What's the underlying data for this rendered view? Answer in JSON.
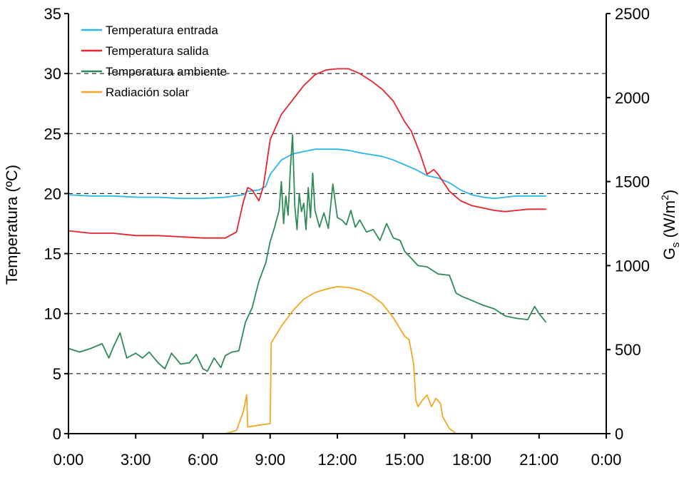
{
  "chart_data": {
    "type": "line",
    "ylabel": "Temperatura (ºC)",
    "y2label": {
      "main": "G",
      "sub": "s",
      "unit_open": " (W/m",
      "unit_sup": "2",
      "unit_close": ")"
    },
    "x_ticks": [
      "0:00",
      "3:00",
      "6:00",
      "9:00",
      "12:00",
      "15:00",
      "18:00",
      "21:00",
      "0:00"
    ],
    "x_range_hours": [
      0,
      24
    ],
    "y_ticks": [
      0,
      5,
      10,
      15,
      20,
      25,
      30,
      35
    ],
    "y_range": [
      0,
      35
    ],
    "y2_ticks": [
      0,
      500,
      1000,
      1500,
      2000,
      2500
    ],
    "y2_range": [
      0,
      2500
    ],
    "grid": "dashed horizontal at y = 5, 10, 15, 20, 25, 30",
    "legend_position": "top-left",
    "series": [
      {
        "name": "Temperatura entrada",
        "color": "#29b6e8",
        "axis": "left",
        "points": [
          [
            0,
            19.9
          ],
          [
            1,
            19.8
          ],
          [
            2,
            19.8
          ],
          [
            3,
            19.7
          ],
          [
            4,
            19.7
          ],
          [
            5,
            19.6
          ],
          [
            6,
            19.6
          ],
          [
            7,
            19.7
          ],
          [
            7.8,
            19.9
          ],
          [
            8,
            20.2
          ],
          [
            8.5,
            20.3
          ],
          [
            8.8,
            20.6
          ],
          [
            9,
            21.6
          ],
          [
            9.5,
            22.8
          ],
          [
            10,
            23.3
          ],
          [
            10.5,
            23.5
          ],
          [
            11,
            23.7
          ],
          [
            11.5,
            23.7
          ],
          [
            12,
            23.7
          ],
          [
            12.5,
            23.6
          ],
          [
            13,
            23.4
          ],
          [
            14,
            23.1
          ],
          [
            14.5,
            22.8
          ],
          [
            15,
            22.4
          ],
          [
            15.5,
            22.0
          ],
          [
            16,
            21.5
          ],
          [
            16.5,
            21.3
          ],
          [
            17,
            20.9
          ],
          [
            17.5,
            20.3
          ],
          [
            18,
            19.9
          ],
          [
            18.5,
            19.7
          ],
          [
            19,
            19.6
          ],
          [
            19.5,
            19.7
          ],
          [
            20,
            19.8
          ],
          [
            20.5,
            19.8
          ],
          [
            21.3,
            19.8
          ]
        ]
      },
      {
        "name": "Temperatura salida",
        "color": "#e8232b",
        "axis": "left",
        "points": [
          [
            0,
            16.9
          ],
          [
            1,
            16.7
          ],
          [
            2,
            16.7
          ],
          [
            3,
            16.5
          ],
          [
            4,
            16.5
          ],
          [
            5,
            16.4
          ],
          [
            6,
            16.3
          ],
          [
            7,
            16.3
          ],
          [
            7.5,
            16.8
          ],
          [
            7.8,
            19.3
          ],
          [
            8,
            20.5
          ],
          [
            8.2,
            20.3
          ],
          [
            8.5,
            19.4
          ],
          [
            8.7,
            20.6
          ],
          [
            9,
            24.5
          ],
          [
            9.5,
            26.6
          ],
          [
            10,
            27.8
          ],
          [
            10.5,
            29.0
          ],
          [
            11,
            29.9
          ],
          [
            11.5,
            30.3
          ],
          [
            12,
            30.4
          ],
          [
            12.5,
            30.4
          ],
          [
            13,
            30.0
          ],
          [
            13.5,
            29.4
          ],
          [
            14,
            28.7
          ],
          [
            14.5,
            27.7
          ],
          [
            15,
            26.0
          ],
          [
            15.3,
            25.2
          ],
          [
            15.7,
            23.3
          ],
          [
            16,
            21.6
          ],
          [
            16.3,
            22.0
          ],
          [
            16.5,
            21.6
          ],
          [
            17,
            20.2
          ],
          [
            17.5,
            19.4
          ],
          [
            18,
            19.0
          ],
          [
            18.5,
            18.8
          ],
          [
            19,
            18.6
          ],
          [
            19.5,
            18.5
          ],
          [
            20,
            18.6
          ],
          [
            20.5,
            18.7
          ],
          [
            21.3,
            18.7
          ]
        ]
      },
      {
        "name": "Temperatura ambiente",
        "color": "#2e8b57",
        "axis": "left",
        "points": [
          [
            0,
            7.1
          ],
          [
            0.5,
            6.8
          ],
          [
            1,
            7.1
          ],
          [
            1.5,
            7.5
          ],
          [
            1.8,
            6.3
          ],
          [
            2,
            7.2
          ],
          [
            2.3,
            8.4
          ],
          [
            2.6,
            6.3
          ],
          [
            3,
            6.7
          ],
          [
            3.3,
            6.3
          ],
          [
            3.6,
            6.8
          ],
          [
            4,
            5.9
          ],
          [
            4.3,
            5.4
          ],
          [
            4.6,
            6.7
          ],
          [
            5,
            5.8
          ],
          [
            5.4,
            5.9
          ],
          [
            5.7,
            6.6
          ],
          [
            6,
            5.4
          ],
          [
            6.2,
            5.2
          ],
          [
            6.5,
            6.3
          ],
          [
            6.8,
            5.5
          ],
          [
            7,
            6.5
          ],
          [
            7.3,
            6.8
          ],
          [
            7.6,
            6.9
          ],
          [
            7.9,
            9.3
          ],
          [
            8.2,
            10.5
          ],
          [
            8.5,
            12.7
          ],
          [
            8.8,
            14.2
          ],
          [
            9,
            16.0
          ],
          [
            9.2,
            17.2
          ],
          [
            9.4,
            18.6
          ],
          [
            9.5,
            21.0
          ],
          [
            9.6,
            17.5
          ],
          [
            9.7,
            19.8
          ],
          [
            9.8,
            18.2
          ],
          [
            9.9,
            22.0
          ],
          [
            10,
            24.9
          ],
          [
            10.1,
            19.0
          ],
          [
            10.2,
            17.0
          ],
          [
            10.3,
            20.0
          ],
          [
            10.4,
            18.5
          ],
          [
            10.5,
            19.2
          ],
          [
            10.6,
            17.0
          ],
          [
            10.7,
            20.5
          ],
          [
            10.8,
            18.0
          ],
          [
            10.9,
            21.7
          ],
          [
            11,
            18.6
          ],
          [
            11.2,
            17.2
          ],
          [
            11.4,
            18.4
          ],
          [
            11.6,
            17.1
          ],
          [
            11.8,
            20.8
          ],
          [
            12,
            18.0
          ],
          [
            12.2,
            17.8
          ],
          [
            12.4,
            17.4
          ],
          [
            12.6,
            18.6
          ],
          [
            12.8,
            17.2
          ],
          [
            13,
            17.8
          ],
          [
            13.3,
            16.8
          ],
          [
            13.6,
            17.0
          ],
          [
            13.9,
            16.1
          ],
          [
            14.2,
            17.5
          ],
          [
            14.5,
            16.3
          ],
          [
            14.8,
            16.1
          ],
          [
            15,
            15.2
          ],
          [
            15.3,
            14.6
          ],
          [
            15.6,
            14.0
          ],
          [
            16,
            13.9
          ],
          [
            16.5,
            13.3
          ],
          [
            17,
            13.2
          ],
          [
            17.3,
            11.7
          ],
          [
            17.6,
            11.4
          ],
          [
            18,
            11.1
          ],
          [
            18.5,
            10.7
          ],
          [
            19,
            10.4
          ],
          [
            19.5,
            9.8
          ],
          [
            20,
            9.6
          ],
          [
            20.5,
            9.5
          ],
          [
            20.8,
            10.6
          ],
          [
            21,
            10.0
          ],
          [
            21.3,
            9.3
          ]
        ]
      },
      {
        "name": "Radiación solar",
        "color": "#f5a623",
        "axis": "right",
        "points": [
          [
            0,
            0
          ],
          [
            7,
            0
          ],
          [
            7.5,
            20
          ],
          [
            7.8,
            130
          ],
          [
            7.95,
            230
          ],
          [
            8.0,
            40
          ],
          [
            8.5,
            50
          ],
          [
            9,
            60
          ],
          [
            9.05,
            540
          ],
          [
            9.5,
            640
          ],
          [
            10,
            730
          ],
          [
            10.5,
            800
          ],
          [
            11,
            840
          ],
          [
            11.5,
            860
          ],
          [
            12,
            875
          ],
          [
            12.5,
            870
          ],
          [
            13,
            855
          ],
          [
            13.5,
            825
          ],
          [
            14,
            775
          ],
          [
            14.5,
            690
          ],
          [
            15,
            580
          ],
          [
            15.2,
            560
          ],
          [
            15.4,
            420
          ],
          [
            15.5,
            200
          ],
          [
            15.6,
            160
          ],
          [
            15.8,
            200
          ],
          [
            16,
            230
          ],
          [
            16.2,
            160
          ],
          [
            16.4,
            210
          ],
          [
            16.6,
            180
          ],
          [
            16.7,
            100
          ],
          [
            17,
            30
          ],
          [
            17.3,
            0
          ],
          [
            21.3,
            0
          ]
        ]
      }
    ]
  }
}
